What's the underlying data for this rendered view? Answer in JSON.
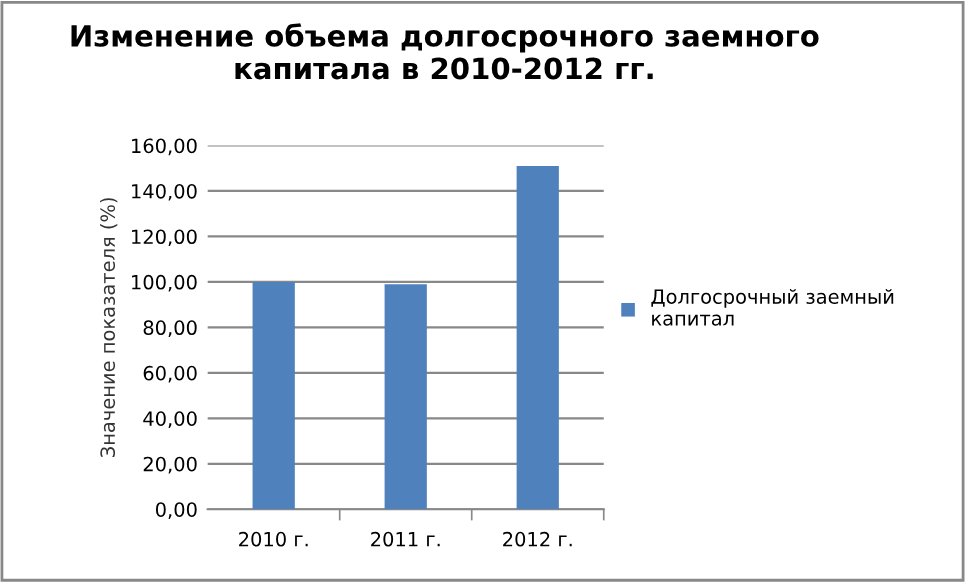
{
  "chart_data": {
    "type": "bar",
    "title": "Изменение объема долгосрочного заемного капитала в 2010-2012 гг.",
    "ylabel": "Значение показателя (%)",
    "categories": [
      "2010 г.",
      "2011 г.",
      "2012 г."
    ],
    "series": [
      {
        "name": "Долгосрочный заемный капитал",
        "color": "#4f81bd",
        "values": [
          100,
          99,
          151
        ]
      }
    ],
    "ylim": [
      0,
      160
    ],
    "yticks": [
      {
        "value": 0,
        "label": "0,00"
      },
      {
        "value": 20,
        "label": "20,00"
      },
      {
        "value": 40,
        "label": "40,00"
      },
      {
        "value": 60,
        "label": "60,00"
      },
      {
        "value": 80,
        "label": "80,00"
      },
      {
        "value": 100,
        "label": "100,00"
      },
      {
        "value": 120,
        "label": "120,00"
      },
      {
        "value": 140,
        "label": "140,00"
      },
      {
        "value": 160,
        "label": "160,00"
      }
    ],
    "grid": "y",
    "legend": "right"
  }
}
